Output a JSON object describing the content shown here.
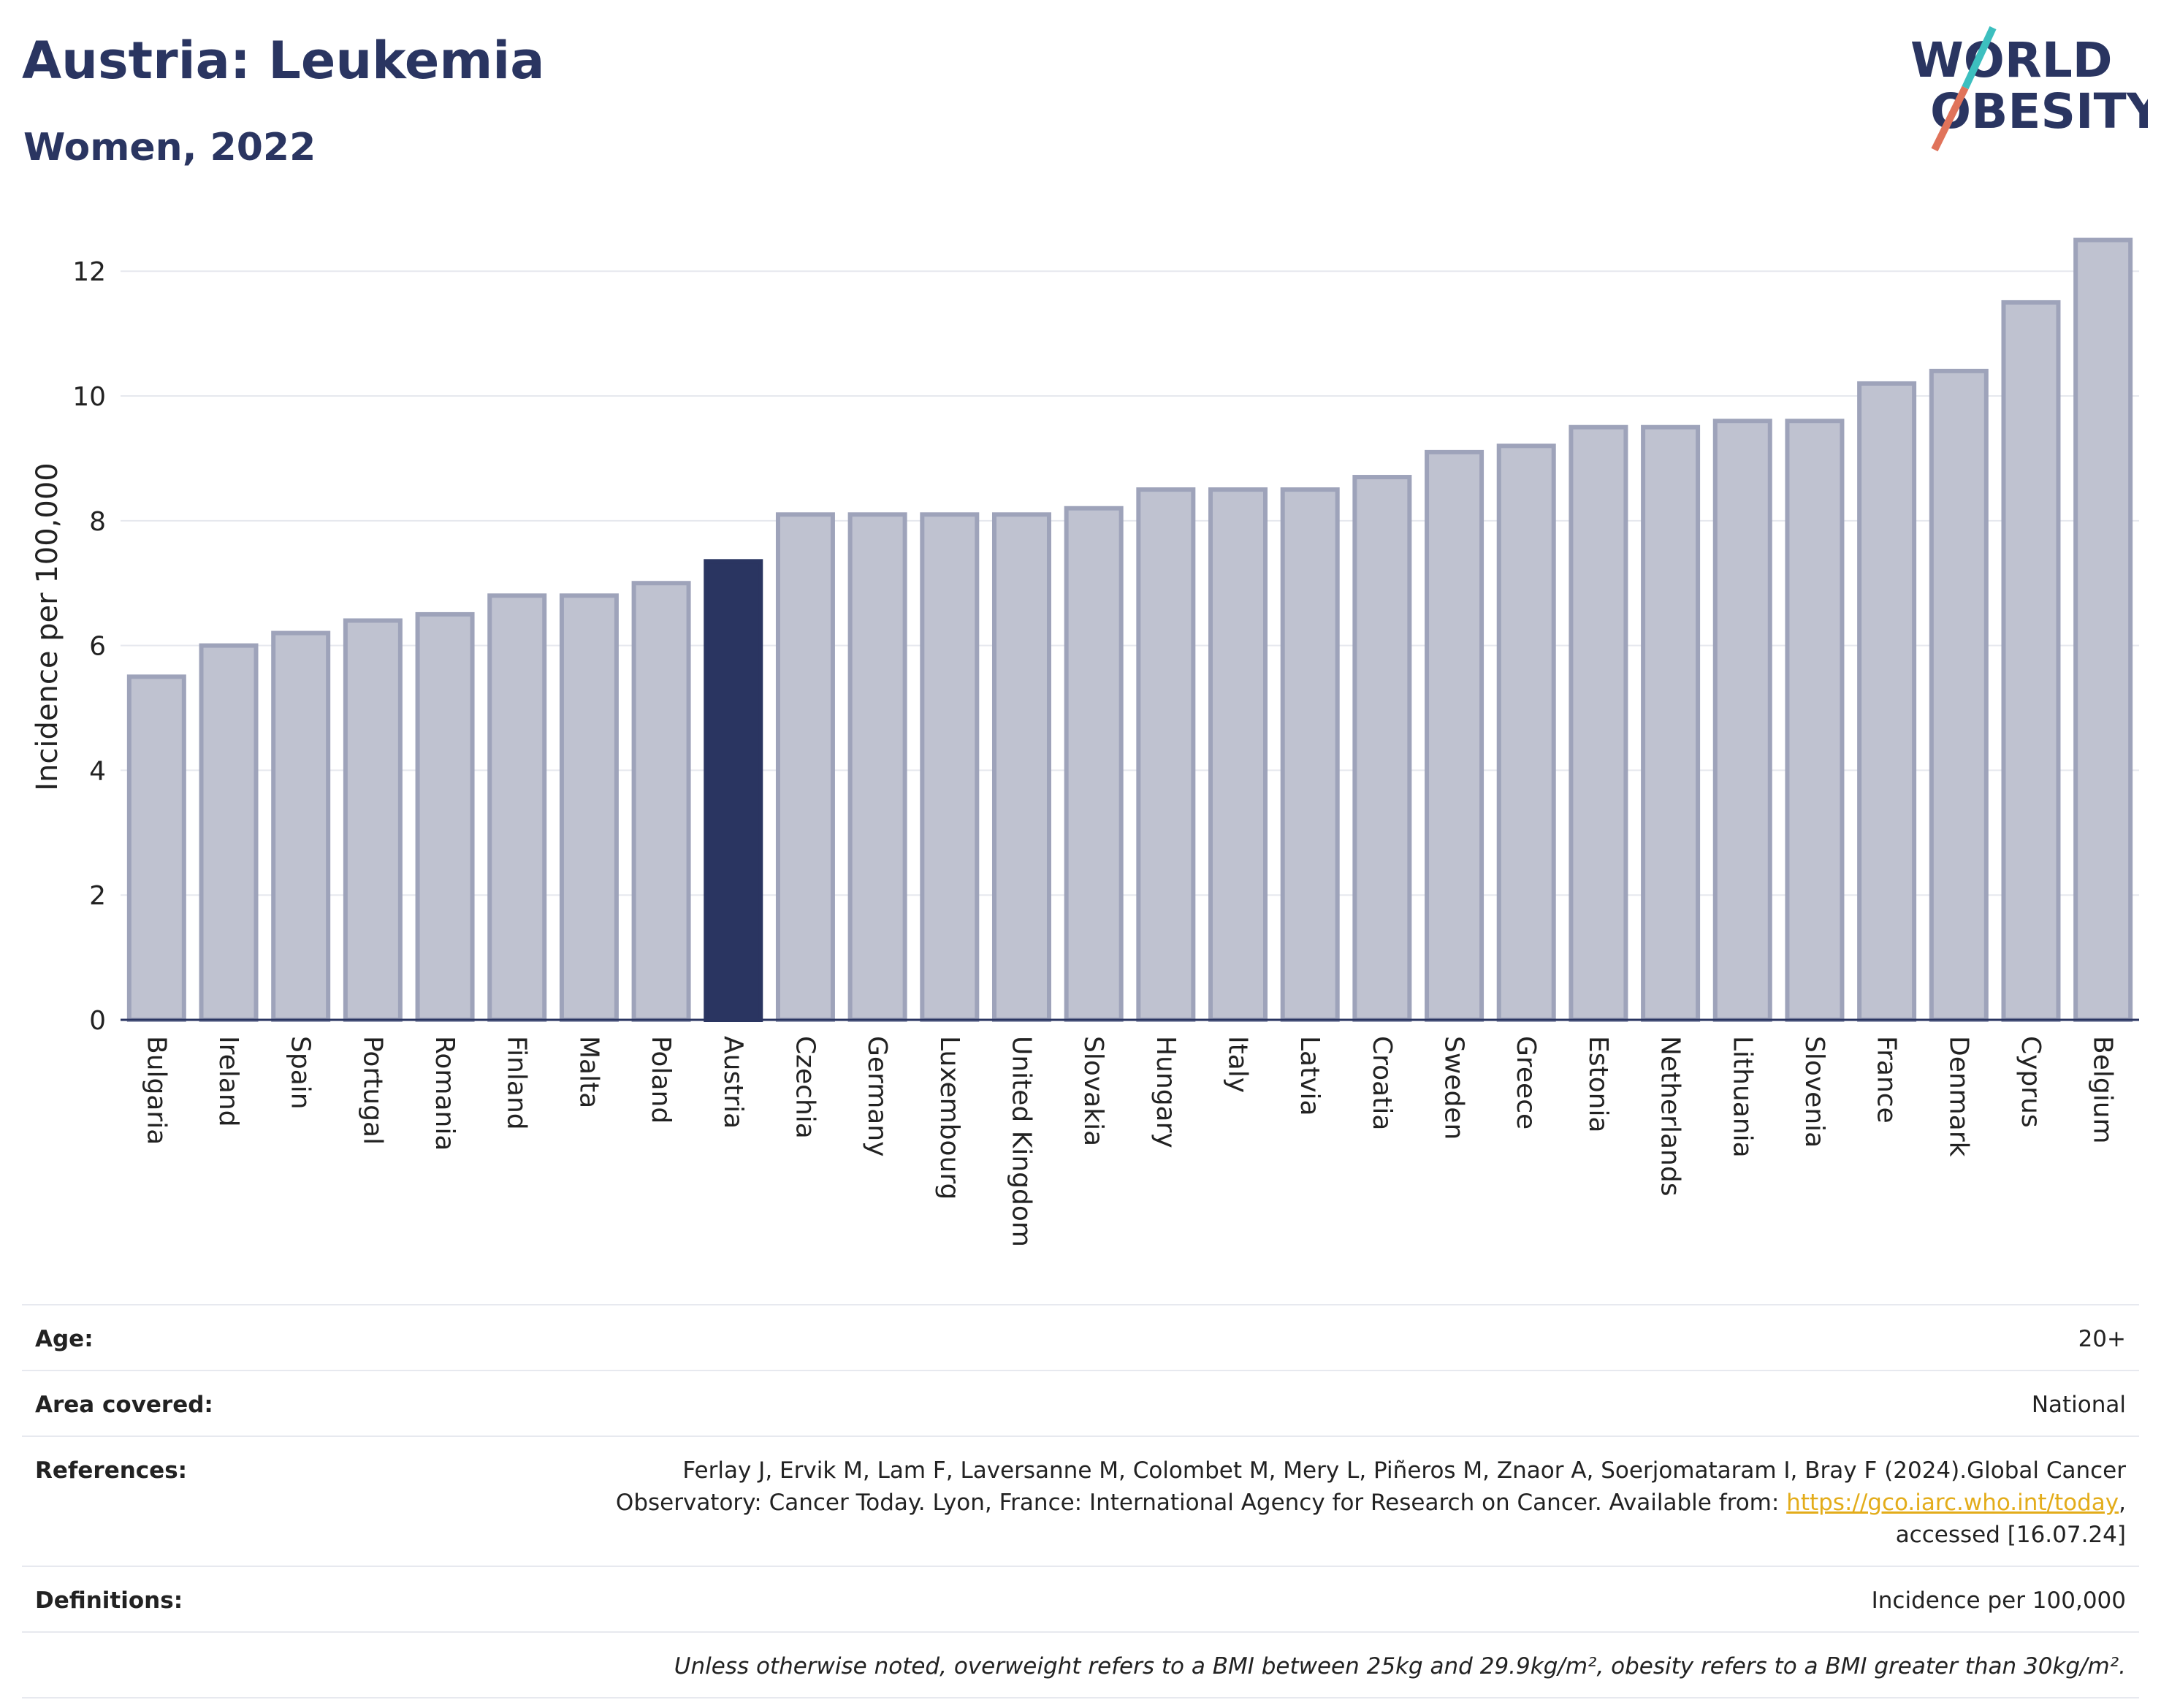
{
  "header": {
    "title": "Austria: Leukemia",
    "subtitle": "Women, 2022"
  },
  "logo": {
    "line1": "WORLD",
    "line2": "OBESITY",
    "colors": {
      "text": "#2a3561",
      "slash_teal": "#3dbfbf",
      "slash_coral": "#e0735a"
    }
  },
  "chart_data": {
    "type": "bar",
    "ylabel": "Incidence per 100,000",
    "xlabel": "",
    "ylim": [
      0,
      12.6
    ],
    "yticks": [
      0,
      2,
      4,
      6,
      8,
      10,
      12
    ],
    "grid": true,
    "highlight": "Austria",
    "colors": {
      "bar": "#bfc2d0",
      "bar_edge": "#9ea3ba",
      "highlight": "#2a3561"
    },
    "categories": [
      "Bulgaria",
      "Ireland",
      "Spain",
      "Portugal",
      "Romania",
      "Finland",
      "Malta",
      "Poland",
      "Austria",
      "Czechia",
      "Germany",
      "Luxembourg",
      "United Kingdom",
      "Slovakia",
      "Hungary",
      "Italy",
      "Latvia",
      "Croatia",
      "Sweden",
      "Greece",
      "Estonia",
      "Netherlands",
      "Lithuania",
      "Slovenia",
      "France",
      "Denmark",
      "Cyprus",
      "Belgium"
    ],
    "values": [
      5.5,
      6.0,
      6.2,
      6.4,
      6.5,
      6.8,
      6.8,
      7.0,
      7.35,
      8.1,
      8.1,
      8.1,
      8.1,
      8.2,
      8.5,
      8.5,
      8.5,
      8.7,
      9.1,
      9.2,
      9.5,
      9.5,
      9.6,
      9.6,
      10.2,
      10.4,
      11.5,
      12.5
    ]
  },
  "info": {
    "age_label": "Age:",
    "age_value": "20+",
    "area_label": "Area covered:",
    "area_value": "National",
    "references_label": "References:",
    "references_text1": "Ferlay J, Ervik M, Lam F, Laversanne M, Colombet M, Mery L, Piñeros M, Znaor A, Soerjomataram I, Bray F (2024).Global Cancer",
    "references_text2": "Observatory: Cancer Today. Lyon, France: International Agency for Research on Cancer. Available from: ",
    "references_link": "https://gco.iarc.who.int/today",
    "references_text3": ",",
    "references_text4": "accessed [16.07.24]",
    "definitions_label": "Definitions:",
    "definitions_value": "Incidence per 100,000",
    "note": "Unless otherwise noted, overweight refers to a BMI between 25kg and 29.9kg/m², obesity refers to a BMI greater than 30kg/m²."
  }
}
